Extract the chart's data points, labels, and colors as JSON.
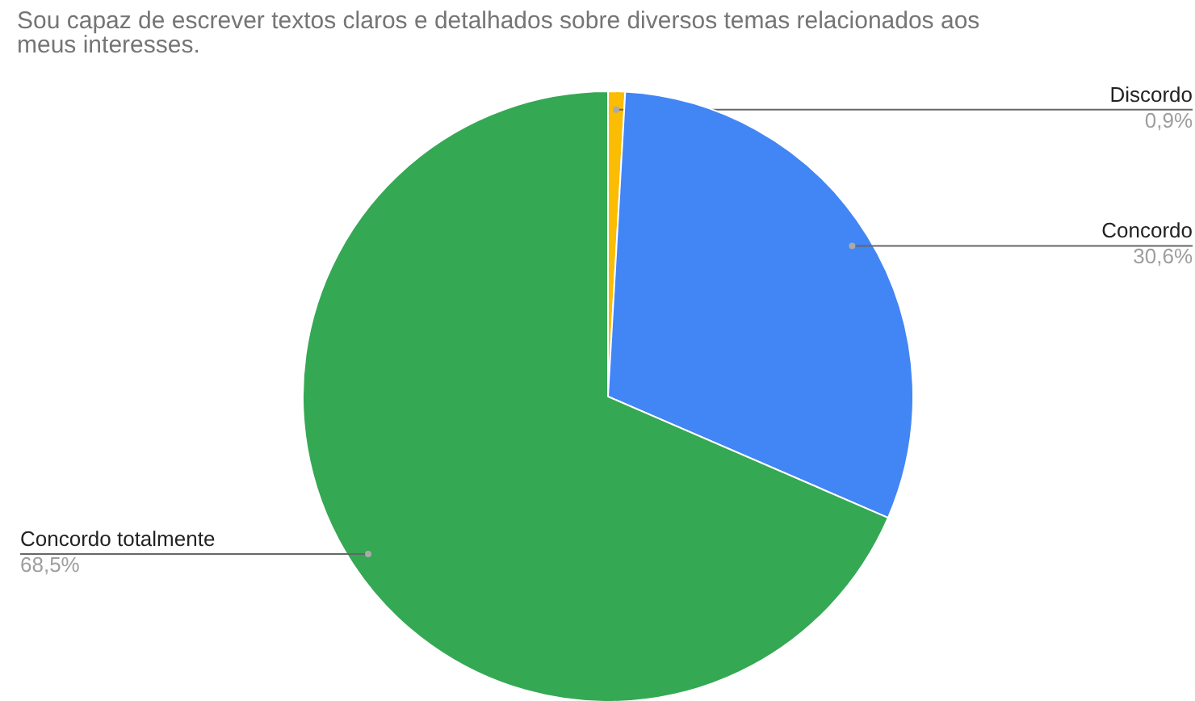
{
  "chart_data": {
    "type": "pie",
    "title": "Sou capaz de escrever textos claros e detalhados sobre diversos temas relacionados aos meus interesses.",
    "categories": [
      "Discordo",
      "Concordo",
      "Concordo totalmente"
    ],
    "values": [
      0.9,
      30.6,
      68.5
    ],
    "colors": [
      "#fbbc04",
      "#4285f4",
      "#34a853"
    ],
    "value_labels": [
      "0,9%",
      "30,6%",
      "68,5%"
    ],
    "legend": false
  }
}
